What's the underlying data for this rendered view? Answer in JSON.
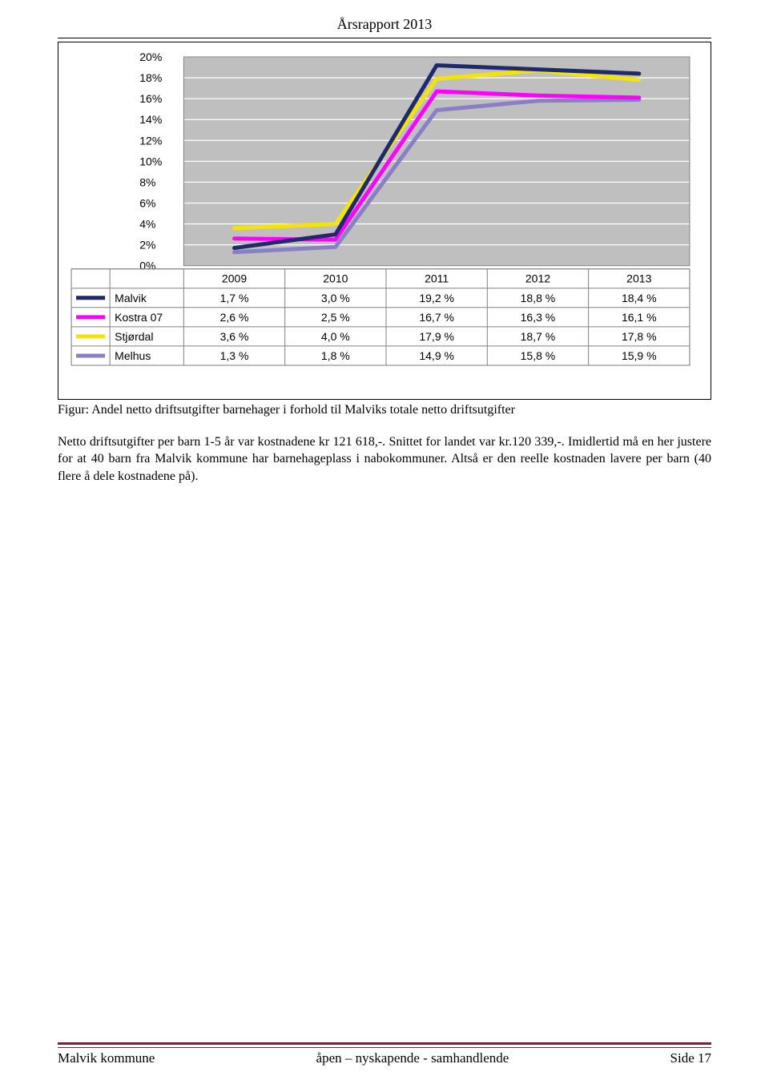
{
  "header": {
    "title": "Årsrapport 2013"
  },
  "chart": {
    "type": "line",
    "background_color": "#ffffff",
    "plot_background_color": "#bfbfbf",
    "grid_color": "#ffffff",
    "years": [
      "2009",
      "2010",
      "2011",
      "2012",
      "2013"
    ],
    "y_axis": {
      "min": 0,
      "max": 20,
      "step": 2,
      "tick_labels": [
        "0%",
        "2%",
        "4%",
        "6%",
        "8%",
        "10%",
        "12%",
        "14%",
        "16%",
        "18%",
        "20%"
      ]
    },
    "series": [
      {
        "name": "Malvik",
        "color": "#1f2a6b",
        "values_pct": [
          1.7,
          3.0,
          19.2,
          18.8,
          18.4
        ],
        "cells": [
          "1,7 %",
          "3,0 %",
          "19,2 %",
          "18,8 %",
          "18,4 %"
        ]
      },
      {
        "name": "Kostra 07",
        "color": "#ff00ff",
        "values_pct": [
          2.6,
          2.5,
          16.7,
          16.3,
          16.1
        ],
        "cells": [
          "2,6 %",
          "2,5 %",
          "16,7 %",
          "16,3 %",
          "16,1 %"
        ]
      },
      {
        "name": "Stjørdal",
        "color": "#f4e400",
        "values_pct": [
          3.6,
          4.0,
          17.9,
          18.7,
          17.8
        ],
        "cells": [
          "3,6 %",
          "4,0 %",
          "17,9 %",
          "18,7 %",
          "17,8 %"
        ]
      },
      {
        "name": "Melhus",
        "color": "#8a7fc7",
        "values_pct": [
          1.3,
          1.8,
          14.9,
          15.8,
          15.9
        ],
        "cells": [
          "1,3 %",
          "1,8 %",
          "14,9 %",
          "15,8 %",
          "15,9 %"
        ]
      }
    ]
  },
  "caption": {
    "figure_label": "Figur: Andel netto driftsutgifter barnehager i forhold til Malviks totale netto driftsutgifter",
    "body": "Netto driftsutgifter per barn 1-5 år var kostnadene kr 121 618,-. Snittet for landet var kr.120 339,-. Imidlertid må en her justere for at 40 barn fra Malvik kommune har barnehageplass i nabokommuner. Altså er den reelle kostnaden lavere per barn (40 flere å dele kostnadene på)."
  },
  "footer": {
    "left": "Malvik kommune",
    "center": "åpen – nyskapende - samhandlende",
    "right": "Side 17",
    "rule_color": "#8a1538"
  }
}
